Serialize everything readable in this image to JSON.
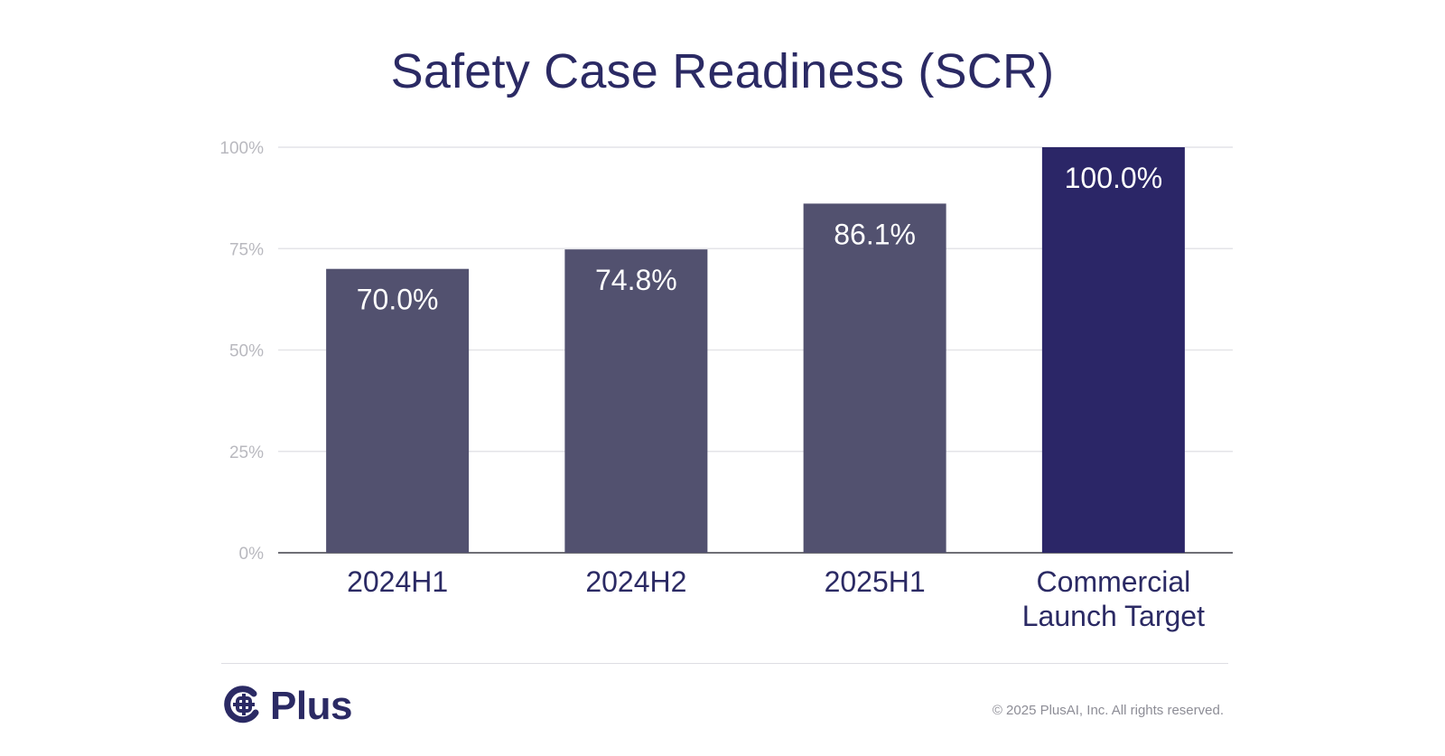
{
  "chart_data": {
    "type": "bar",
    "title": "Safety Case Readiness (SCR)",
    "xlabel": "",
    "ylabel": "",
    "categories": [
      "2024H1",
      "2024H2",
      "2025H1",
      "Commercial Launch Target"
    ],
    "values": [
      70.0,
      74.8,
      86.1,
      100.0
    ],
    "value_labels": [
      "70.0%",
      "74.8%",
      "86.1%",
      "100.0%"
    ],
    "ylim": [
      0,
      100
    ],
    "yticks": [
      0,
      25,
      50,
      75,
      100
    ],
    "ytick_labels": [
      "0%",
      "25%",
      "50%",
      "75%",
      "100%"
    ],
    "grid": true,
    "legend": "none",
    "colors": [
      "#52516f",
      "#52516f",
      "#52516f",
      "#2b2667"
    ]
  },
  "footer": {
    "logo_text": "Plus",
    "copyright": "© 2025 PlusAI, Inc. All rights reserved."
  },
  "colors": {
    "title": "#2b2a64",
    "bar": "#52516f",
    "bar_highlight": "#2b2667",
    "axis_text": "#b9b9bf",
    "grid": "#e4e4e8"
  }
}
